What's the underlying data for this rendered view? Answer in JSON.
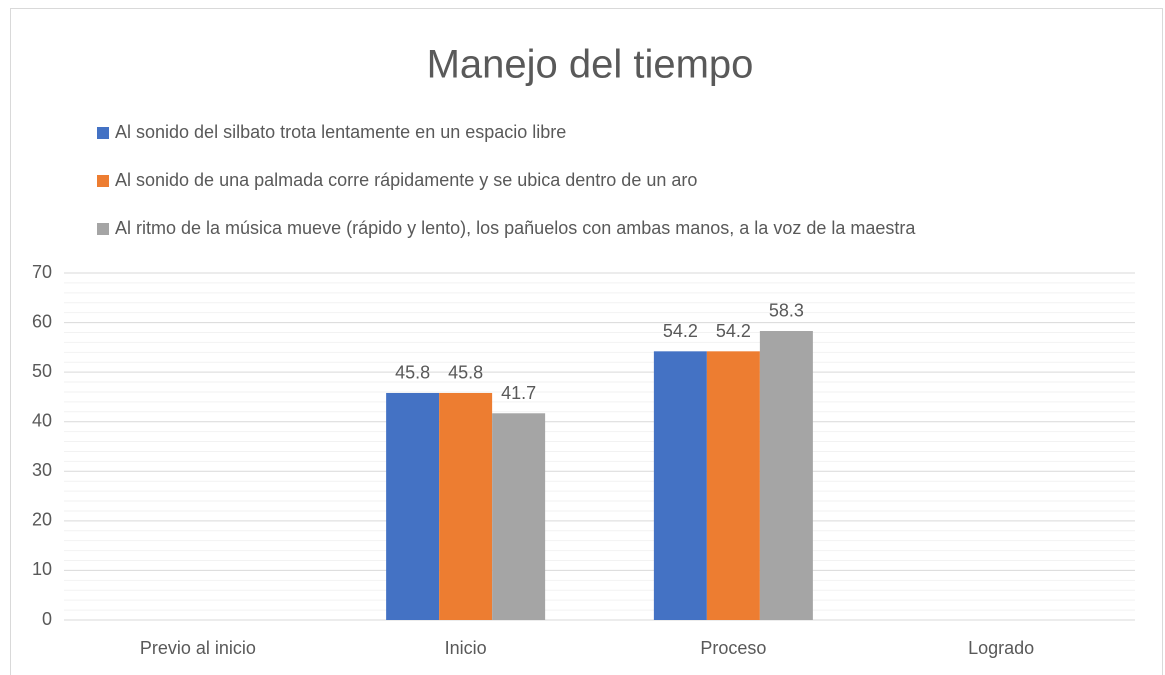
{
  "chart_data": {
    "type": "bar",
    "title": "Manejo del tiempo",
    "categories": [
      "Previo al inicio",
      "Inicio",
      "Proceso",
      "Logrado"
    ],
    "series": [
      {
        "name": "Al sonido del silbato trota lentamente en un espacio libre",
        "color": "#4472c4",
        "values": [
          null,
          45.8,
          54.2,
          null
        ]
      },
      {
        "name": "Al sonido de una palmada corre rápidamente y se ubica dentro de un aro",
        "color": "#ed7d31",
        "values": [
          null,
          45.8,
          54.2,
          null
        ]
      },
      {
        "name": "Al ritmo de la música mueve (rápido y lento), los pañuelos con ambas manos, a la voz de la maestra",
        "color": "#a5a5a5",
        "values": [
          null,
          41.7,
          58.3,
          null
        ]
      }
    ],
    "ylim": [
      0,
      70
    ],
    "yticks": [
      0,
      10,
      20,
      30,
      40,
      50,
      60,
      70
    ],
    "grid": true,
    "minor_grid": true,
    "legend": "top",
    "data_labels": true
  }
}
